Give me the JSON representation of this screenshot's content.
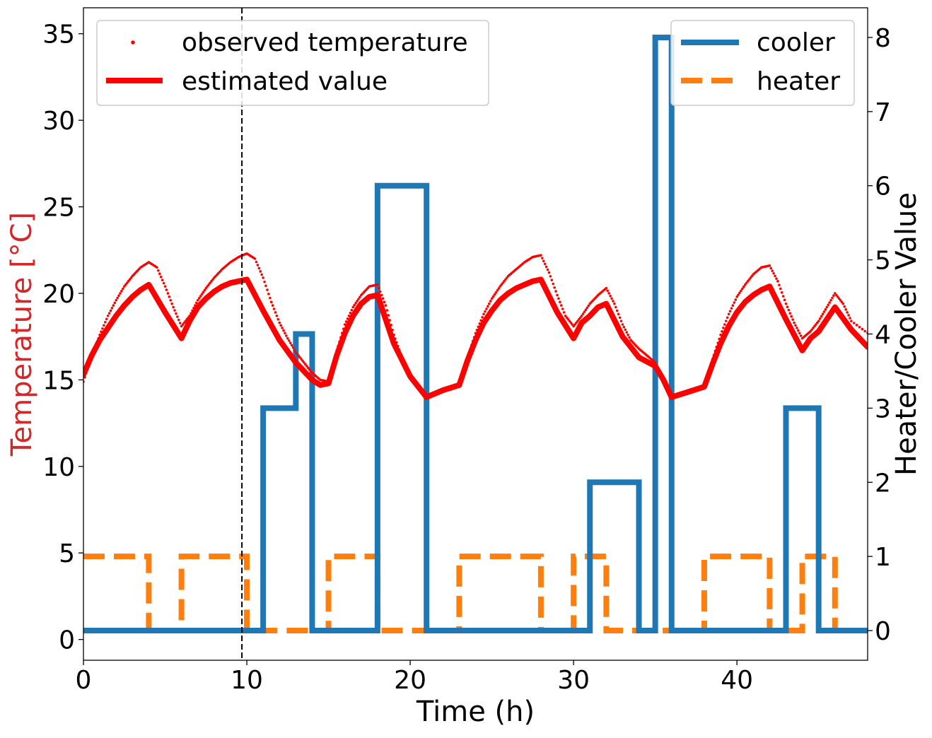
{
  "chart_data": {
    "type": "line",
    "xlabel": "Time (h)",
    "ylabel_left": "Temperature [°C]",
    "ylabel_right": "Heater/Cooler Value",
    "xlim": [
      0,
      48
    ],
    "ylim_left": [
      -1.2,
      36.5
    ],
    "ylim_right": [
      -0.4,
      8.4
    ],
    "x_ticks": [
      0,
      10,
      20,
      30,
      40
    ],
    "y_left_ticks": [
      0,
      5,
      10,
      15,
      20,
      25,
      30,
      35
    ],
    "y_right_ticks": [
      0,
      1,
      2,
      3,
      4,
      5,
      6,
      7,
      8
    ],
    "vline_x": 9.7,
    "grid": false,
    "colors": {
      "observed": "#ff0000",
      "estimated": "#ff0000",
      "cooler": "#1f77b4",
      "heater": "#ff7f0e",
      "left_label": "#d62728",
      "vline": "#000000"
    },
    "legend_left": {
      "placement": "top-left",
      "entries": [
        "observed temperature",
        "estimated value"
      ]
    },
    "legend_right": {
      "placement": "top-right",
      "entries": [
        "cooler",
        "heater"
      ]
    },
    "series": [
      {
        "name": "estimated value",
        "axis": "left",
        "points": [
          [
            0,
            15.3
          ],
          [
            0.5,
            16.4
          ],
          [
            1,
            17.3
          ],
          [
            1.5,
            18.0
          ],
          [
            2,
            18.7
          ],
          [
            2.5,
            19.3
          ],
          [
            3,
            19.8
          ],
          [
            3.5,
            20.2
          ],
          [
            4,
            20.5
          ],
          [
            5,
            18.9
          ],
          [
            6,
            17.4
          ],
          [
            6.5,
            18.4
          ],
          [
            7,
            19.2
          ],
          [
            7.5,
            19.7
          ],
          [
            8,
            20.1
          ],
          [
            8.5,
            20.4
          ],
          [
            9,
            20.6
          ],
          [
            9.5,
            20.7
          ],
          [
            10,
            20.8
          ],
          [
            11,
            19.0
          ],
          [
            12,
            17.3
          ],
          [
            13,
            16.0
          ],
          [
            14,
            15.0
          ],
          [
            14.5,
            14.7
          ],
          [
            15,
            14.8
          ],
          [
            15.5,
            16.4
          ],
          [
            16,
            17.7
          ],
          [
            16.5,
            18.7
          ],
          [
            17,
            19.4
          ],
          [
            17.5,
            19.8
          ],
          [
            18,
            19.9
          ],
          [
            19,
            17.1
          ],
          [
            20,
            15.2
          ],
          [
            21,
            14.0
          ],
          [
            22,
            14.4
          ],
          [
            23,
            14.7
          ],
          [
            23.5,
            16.1
          ],
          [
            24,
            17.3
          ],
          [
            24.5,
            18.3
          ],
          [
            25,
            19.0
          ],
          [
            25.5,
            19.6
          ],
          [
            26,
            20.0
          ],
          [
            26.5,
            20.3
          ],
          [
            27,
            20.5
          ],
          [
            27.5,
            20.7
          ],
          [
            28,
            20.8
          ],
          [
            29,
            18.9
          ],
          [
            30,
            17.4
          ],
          [
            30.5,
            18.3
          ],
          [
            31,
            18.7
          ],
          [
            31.5,
            19.2
          ],
          [
            32,
            19.4
          ],
          [
            33,
            17.5
          ],
          [
            34,
            16.3
          ],
          [
            35,
            15.8
          ],
          [
            35.5,
            15.0
          ],
          [
            36,
            14.0
          ],
          [
            37,
            14.3
          ],
          [
            38,
            14.6
          ],
          [
            38.5,
            15.9
          ],
          [
            39,
            17.1
          ],
          [
            39.5,
            18.1
          ],
          [
            40,
            18.9
          ],
          [
            40.5,
            19.5
          ],
          [
            41,
            19.9
          ],
          [
            41.5,
            20.2
          ],
          [
            42,
            20.4
          ],
          [
            43,
            18.5
          ],
          [
            44,
            16.7
          ],
          [
            44.5,
            17.4
          ],
          [
            45,
            17.8
          ],
          [
            45.5,
            18.5
          ],
          [
            46,
            19.2
          ],
          [
            47,
            17.9
          ],
          [
            48,
            16.9
          ]
        ]
      },
      {
        "name": "observed temperature",
        "axis": "left",
        "style": "dots",
        "points": [
          [
            0,
            14.9
          ],
          [
            0.5,
            16.4
          ],
          [
            1,
            17.6
          ],
          [
            1.5,
            18.7
          ],
          [
            2,
            19.6
          ],
          [
            2.5,
            20.4
          ],
          [
            3,
            21.0
          ],
          [
            3.5,
            21.5
          ],
          [
            4,
            21.8
          ],
          [
            4.5,
            21.5
          ],
          [
            5,
            20.4
          ],
          [
            5.5,
            19.2
          ],
          [
            6,
            18.1
          ],
          [
            6.5,
            18.7
          ],
          [
            7,
            19.6
          ],
          [
            7.5,
            20.3
          ],
          [
            8,
            20.9
          ],
          [
            8.5,
            21.4
          ],
          [
            9,
            21.8
          ],
          [
            9.5,
            22.1
          ],
          [
            10,
            22.3
          ],
          [
            10.5,
            22.0
          ],
          [
            11,
            20.9
          ],
          [
            11.5,
            19.5
          ],
          [
            12,
            18.3
          ],
          [
            12.5,
            17.4
          ],
          [
            13,
            16.6
          ],
          [
            13.5,
            16.0
          ],
          [
            14,
            15.4
          ],
          [
            14.5,
            15.0
          ],
          [
            15,
            14.9
          ],
          [
            15.5,
            16.7
          ],
          [
            16,
            18.2
          ],
          [
            16.5,
            19.2
          ],
          [
            17,
            19.9
          ],
          [
            17.5,
            20.4
          ],
          [
            18,
            20.5
          ],
          [
            18.5,
            19.3
          ],
          [
            19,
            17.6
          ],
          [
            19.5,
            16.3
          ],
          [
            20,
            15.2
          ],
          [
            20.5,
            14.5
          ],
          [
            21,
            14.0
          ],
          [
            22,
            14.3
          ],
          [
            23,
            14.6
          ],
          [
            23.5,
            16.3
          ],
          [
            24,
            17.7
          ],
          [
            24.5,
            18.8
          ],
          [
            25,
            19.7
          ],
          [
            25.5,
            20.4
          ],
          [
            26,
            21.0
          ],
          [
            26.5,
            21.4
          ],
          [
            27,
            21.8
          ],
          [
            27.5,
            22.1
          ],
          [
            28,
            22.2
          ],
          [
            28.5,
            21.2
          ],
          [
            29,
            19.9
          ],
          [
            29.5,
            18.7
          ],
          [
            30,
            18.1
          ],
          [
            30.5,
            18.7
          ],
          [
            31,
            19.4
          ],
          [
            31.5,
            19.9
          ],
          [
            32,
            20.3
          ],
          [
            32.5,
            19.4
          ],
          [
            33,
            18.2
          ],
          [
            33.5,
            17.3
          ],
          [
            34,
            16.8
          ],
          [
            34.5,
            16.4
          ],
          [
            35,
            16.0
          ],
          [
            35.5,
            15.0
          ],
          [
            36,
            14.0
          ],
          [
            37,
            14.4
          ],
          [
            38,
            14.7
          ],
          [
            38.5,
            16.2
          ],
          [
            39,
            17.6
          ],
          [
            39.5,
            18.8
          ],
          [
            40,
            19.8
          ],
          [
            40.5,
            20.5
          ],
          [
            41,
            21.1
          ],
          [
            41.5,
            21.5
          ],
          [
            42,
            21.6
          ],
          [
            42.5,
            20.7
          ],
          [
            43,
            19.4
          ],
          [
            43.5,
            18.3
          ],
          [
            44,
            17.4
          ],
          [
            44.5,
            17.8
          ],
          [
            45,
            18.4
          ],
          [
            45.5,
            19.2
          ],
          [
            46,
            20.0
          ],
          [
            46.5,
            19.4
          ],
          [
            47,
            18.4
          ],
          [
            48,
            17.7
          ]
        ]
      },
      {
        "name": "cooler",
        "axis": "right",
        "style": "step",
        "points": [
          [
            0,
            0
          ],
          [
            11,
            0
          ],
          [
            11,
            3
          ],
          [
            13,
            3
          ],
          [
            13,
            4
          ],
          [
            14,
            4
          ],
          [
            14,
            0
          ],
          [
            18,
            0
          ],
          [
            18,
            6
          ],
          [
            21,
            6
          ],
          [
            21,
            0
          ],
          [
            31,
            0
          ],
          [
            31,
            2
          ],
          [
            34,
            2
          ],
          [
            34,
            0
          ],
          [
            35,
            0
          ],
          [
            35,
            8
          ],
          [
            36,
            8
          ],
          [
            36,
            0
          ],
          [
            43,
            0
          ],
          [
            43,
            3
          ],
          [
            45,
            3
          ],
          [
            45,
            0
          ],
          [
            48,
            0
          ]
        ]
      },
      {
        "name": "heater",
        "axis": "right",
        "style": "step-dashed",
        "points": [
          [
            0,
            1
          ],
          [
            4,
            1
          ],
          [
            4,
            0
          ],
          [
            6,
            0
          ],
          [
            6,
            1
          ],
          [
            10,
            1
          ],
          [
            10,
            0
          ],
          [
            15,
            0
          ],
          [
            15,
            1
          ],
          [
            18,
            1
          ],
          [
            18,
            0
          ],
          [
            23,
            0
          ],
          [
            23,
            1
          ],
          [
            28,
            1
          ],
          [
            28,
            0
          ],
          [
            30,
            0
          ],
          [
            30,
            1
          ],
          [
            32,
            1
          ],
          [
            32,
            0
          ],
          [
            38,
            0
          ],
          [
            38,
            1
          ],
          [
            42,
            1
          ],
          [
            42,
            0
          ],
          [
            44,
            0
          ],
          [
            44,
            1
          ],
          [
            46,
            1
          ],
          [
            46,
            0
          ],
          [
            48,
            0
          ]
        ]
      }
    ]
  }
}
